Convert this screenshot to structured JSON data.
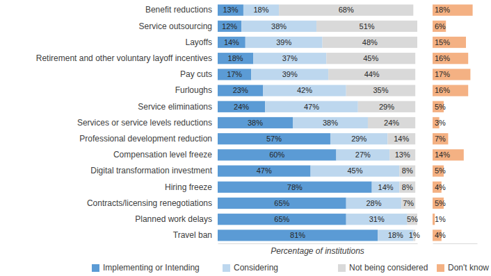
{
  "chart_data": [
    {
      "type": "bar",
      "orientation": "horizontal",
      "stacked": true,
      "data_labels": true,
      "tick_labels": false,
      "xlabel": "Percentage of institutions",
      "xlim": [
        0,
        101
      ],
      "categories": [
        "Benefit reductions",
        "Service outsourcing",
        "Layoffs",
        "Retirement and other voluntary layoff incentives",
        "Pay cuts",
        "Furloughs",
        "Service eliminations",
        "Services or service levels reductions",
        "Professional development reduction",
        "Compensation level freeze",
        "Digital transformation investment",
        "Hiring freeze",
        "Contracts/licensing renegotiations",
        "Planned work delays",
        "Travel ban"
      ],
      "series": [
        {
          "name": "Implementing or Intending",
          "color": "#5b9bd5",
          "values": [
            13,
            12,
            14,
            18,
            17,
            23,
            24,
            38,
            57,
            60,
            47,
            78,
            65,
            65,
            81
          ],
          "value_labels": [
            "13%",
            "12%",
            "14%",
            "18%",
            "17%",
            "23%",
            "24%",
            "38%",
            "57%",
            "60%",
            "47%",
            "78%",
            "65%",
            "65%",
            "81%"
          ]
        },
        {
          "name": "Considering",
          "color": "#bdd7ee",
          "values": [
            18,
            38,
            39,
            37,
            39,
            42,
            47,
            38,
            29,
            27,
            45,
            14,
            28,
            31,
            18
          ],
          "value_labels": [
            "18%",
            "38%",
            "39%",
            "37%",
            "39%",
            "42%",
            "47%",
            "38%",
            "29%",
            "27%",
            "45%",
            "14%",
            "28%",
            "31%",
            "18%"
          ]
        },
        {
          "name": "Not being considered",
          "color": "#d9d9d9",
          "values": [
            68,
            51,
            48,
            45,
            44,
            35,
            29,
            24,
            14,
            13,
            8,
            8,
            7,
            5,
            1
          ],
          "value_labels": [
            "68%",
            "51%",
            "48%",
            "45%",
            "44%",
            "35%",
            "29%",
            "24%",
            "14%",
            "13%",
            "8%",
            "8%",
            "7%",
            "5%",
            "1%"
          ]
        }
      ]
    },
    {
      "type": "bar",
      "orientation": "horizontal",
      "data_labels": true,
      "tick_labels": false,
      "xlim": [
        0,
        20
      ],
      "categories": [
        null,
        null,
        null,
        null,
        null,
        null,
        null,
        null,
        null,
        null,
        null,
        null,
        null,
        null,
        null
      ],
      "series": [
        {
          "name": "Don't know",
          "color": "#f4b183",
          "values": [
            18,
            6,
            15,
            16,
            17,
            16,
            5,
            3,
            7,
            14,
            5,
            4,
            5,
            1,
            4
          ],
          "value_labels": [
            "18%",
            "6%",
            "15%",
            "16%",
            "17%",
            "16%",
            "5%",
            "3%",
            "7%",
            "14%",
            "5%",
            "4%",
            "5%",
            "1%",
            "4%"
          ]
        }
      ]
    }
  ]
}
